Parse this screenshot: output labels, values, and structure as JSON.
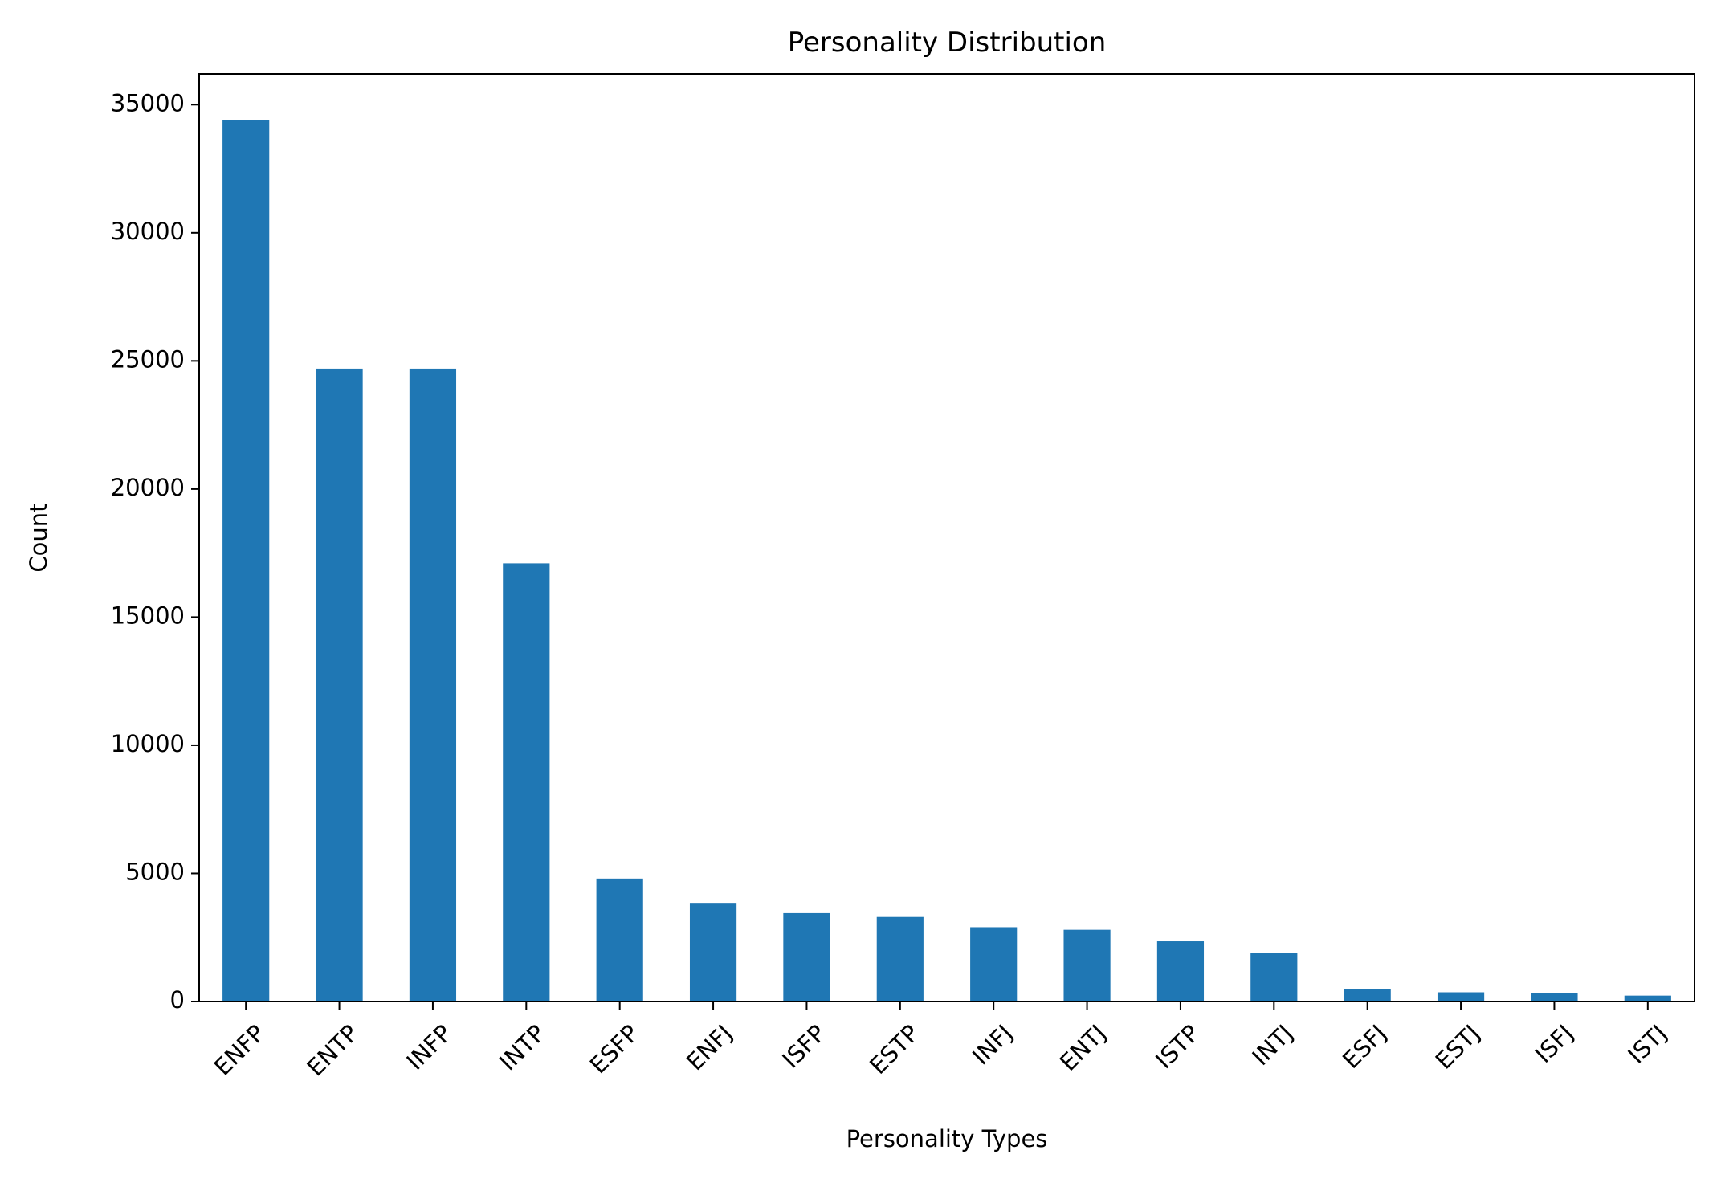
{
  "chart_data": {
    "type": "bar",
    "title": "Personality Distribution",
    "xlabel": "Personality Types",
    "ylabel": "Count",
    "categories": [
      "ENFP",
      "ENTP",
      "INFP",
      "INTP",
      "ESFP",
      "ENFJ",
      "ISFP",
      "ESTP",
      "INFJ",
      "ENTJ",
      "ISTP",
      "INTJ",
      "ESFJ",
      "ESTJ",
      "ISFJ",
      "ISTJ"
    ],
    "values": [
      34400,
      24700,
      24700,
      17100,
      4800,
      3850,
      3450,
      3300,
      2900,
      2800,
      2350,
      1900,
      500,
      360,
      320,
      230
    ],
    "ylim": [
      0,
      36200
    ],
    "yticks": [
      0,
      5000,
      10000,
      15000,
      20000,
      25000,
      30000,
      35000
    ],
    "ytick_labels": [
      "0",
      "5000",
      "10000",
      "15000",
      "20000",
      "25000",
      "30000",
      "35000"
    ],
    "bar_color": "#1f77b4",
    "grid": false,
    "legend": "none",
    "x_tick_rotation": 45
  }
}
